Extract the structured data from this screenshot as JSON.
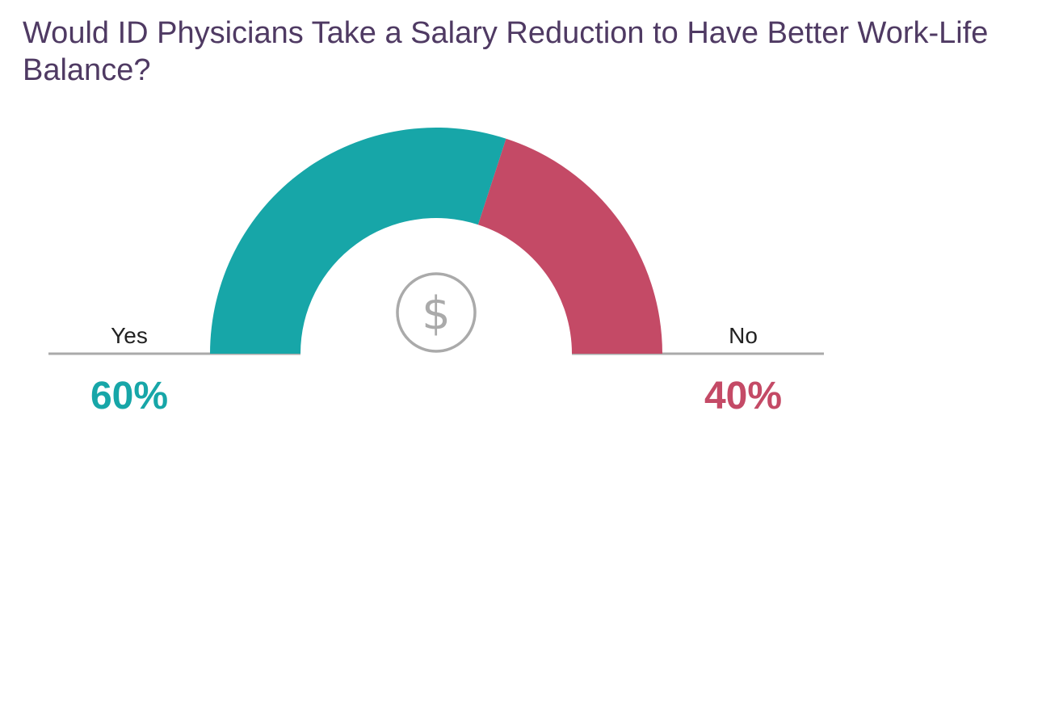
{
  "title": "Would ID Physicians Take a Salary Reduction to Have Better Work-Life Balance?",
  "icon": "dollar-icon",
  "chart_data": {
    "type": "pie",
    "variant": "half-donut",
    "categories": [
      "Yes",
      "No"
    ],
    "values": [
      60,
      40
    ],
    "value_labels": [
      "60%",
      "40%"
    ],
    "colors": [
      "#17a6a8",
      "#c44a66"
    ],
    "baseline_color": "#aaaaaa",
    "icon_color": "#aaaaaa"
  }
}
